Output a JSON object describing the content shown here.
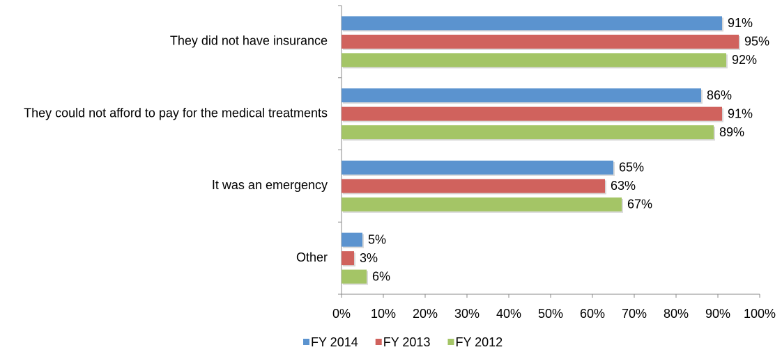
{
  "chart_data": {
    "type": "bar",
    "orientation": "horizontal",
    "categories": [
      "They did not have insurance",
      "They could not afford to pay for the medical treatments",
      "It was an emergency",
      "Other"
    ],
    "series": [
      {
        "name": "FY 2014",
        "color": "#5b93cf",
        "values": [
          91,
          86,
          65,
          5
        ],
        "value_labels": [
          "91%",
          "86%",
          "65%",
          "5%"
        ]
      },
      {
        "name": "FY 2013",
        "color": "#d0625d",
        "values": [
          95,
          91,
          63,
          3
        ],
        "value_labels": [
          "95%",
          "91%",
          "63%",
          "3%"
        ]
      },
      {
        "name": "FY 2012",
        "color": "#a4c566",
        "values": [
          92,
          89,
          67,
          6
        ],
        "value_labels": [
          "92%",
          "89%",
          "67%",
          "6%"
        ]
      }
    ],
    "xlim": [
      0,
      100
    ],
    "xticks": [
      {
        "value": 0,
        "label": "0%"
      },
      {
        "value": 10,
        "label": "10%"
      },
      {
        "value": 20,
        "label": "20%"
      },
      {
        "value": 30,
        "label": "30%"
      },
      {
        "value": 40,
        "label": "40%"
      },
      {
        "value": 50,
        "label": "50%"
      },
      {
        "value": 60,
        "label": "60%"
      },
      {
        "value": 70,
        "label": "70%"
      },
      {
        "value": 80,
        "label": "80%"
      },
      {
        "value": 90,
        "label": "90%"
      },
      {
        "value": 100,
        "label": "100%"
      }
    ],
    "legend": "bottom"
  }
}
